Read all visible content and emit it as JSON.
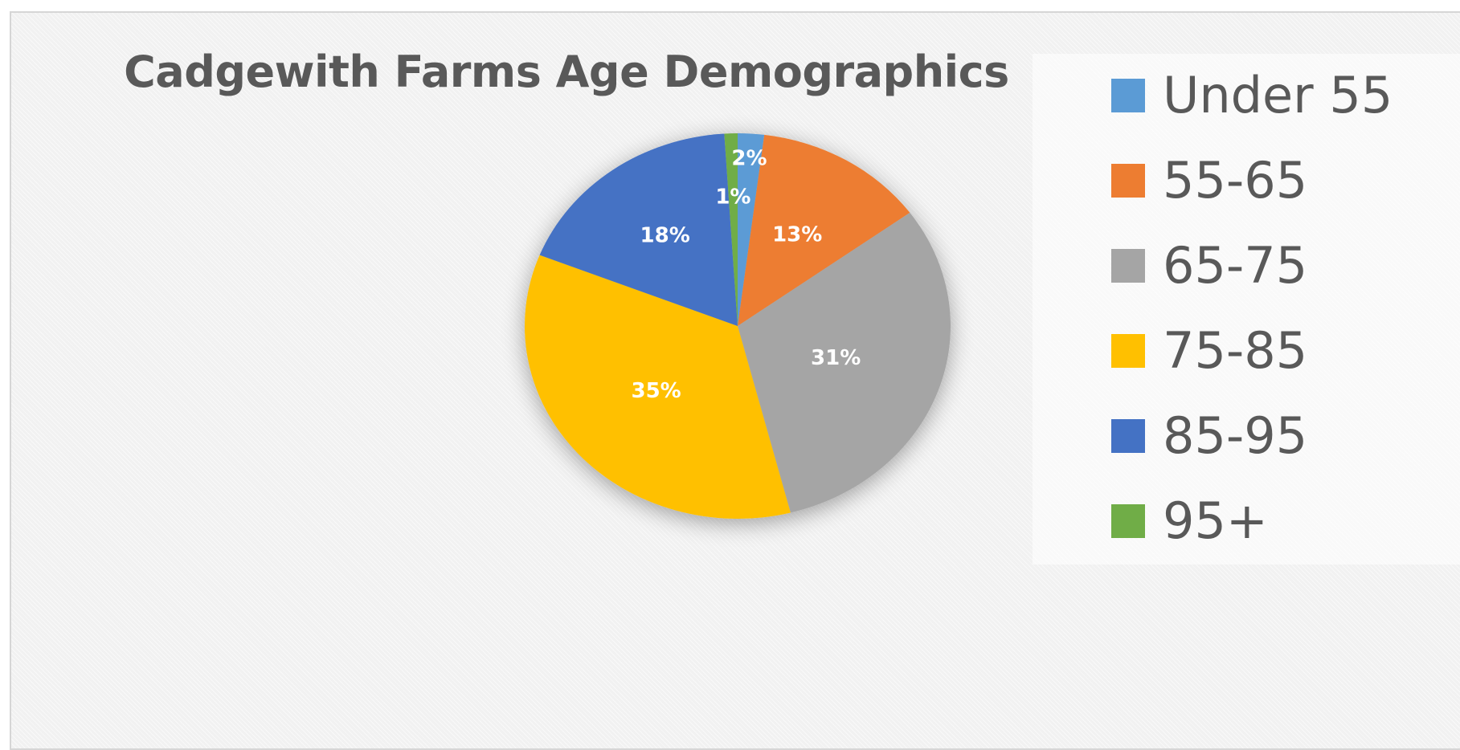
{
  "chart_data": {
    "type": "pie",
    "title": "Cadgewith Farms Age Demographics",
    "legend_position": "right",
    "categories": [
      "Under 55",
      "55-65",
      "65-75",
      "75-85",
      "85-95",
      "95+"
    ],
    "values": [
      2,
      13,
      31,
      35,
      18,
      1
    ],
    "labels": [
      "2%",
      "13%",
      "31%",
      "35%",
      "18%",
      "1%"
    ],
    "colors": [
      "#5b9bd5",
      "#ed7d31",
      "#a5a5a5",
      "#ffc000",
      "#4472c4",
      "#70ad47"
    ]
  }
}
